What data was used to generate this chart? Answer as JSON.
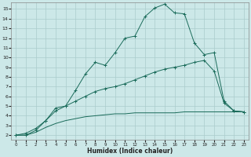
{
  "xlabel": "Humidex (Indice chaleur)",
  "bg_color": "#cce8e8",
  "line_color": "#1a6b5a",
  "grid_color": "#aacccc",
  "xlim": [
    -0.5,
    23.5
  ],
  "ylim": [
    1.5,
    15.7
  ],
  "xticks": [
    0,
    1,
    2,
    3,
    4,
    5,
    6,
    7,
    8,
    9,
    10,
    11,
    12,
    13,
    14,
    15,
    16,
    17,
    18,
    19,
    20,
    21,
    22,
    23
  ],
  "yticks": [
    2,
    3,
    4,
    5,
    6,
    7,
    8,
    9,
    10,
    11,
    12,
    13,
    14,
    15
  ],
  "line1_x": [
    0,
    1,
    2,
    3,
    4,
    5,
    6,
    7,
    8,
    9,
    10,
    11,
    12,
    13,
    14,
    15,
    16,
    17,
    18,
    19,
    20,
    21,
    22,
    23
  ],
  "line1_y": [
    2.0,
    2.2,
    2.7,
    3.5,
    4.5,
    5.0,
    6.6,
    8.3,
    9.5,
    9.2,
    10.5,
    12.0,
    12.2,
    14.2,
    15.1,
    15.5,
    14.6,
    14.5,
    11.5,
    10.3,
    10.5,
    5.5,
    4.5,
    4.4
  ],
  "line2_x": [
    0,
    1,
    2,
    3,
    4,
    5,
    6,
    7,
    8,
    9,
    10,
    11,
    12,
    13,
    14,
    15,
    16,
    17,
    18,
    19,
    20,
    21,
    22,
    23
  ],
  "line2_y": [
    2.0,
    2.0,
    2.5,
    3.5,
    4.8,
    5.0,
    5.5,
    6.0,
    6.5,
    6.8,
    7.0,
    7.3,
    7.7,
    8.1,
    8.5,
    8.8,
    9.0,
    9.2,
    9.5,
    9.7,
    8.6,
    5.3,
    4.5,
    4.4
  ],
  "line3_x": [
    0,
    1,
    2,
    3,
    4,
    5,
    6,
    7,
    8,
    9,
    10,
    11,
    12,
    13,
    14,
    15,
    16,
    17,
    18,
    19,
    20,
    21,
    22,
    23
  ],
  "line3_y": [
    2.0,
    2.0,
    2.3,
    2.8,
    3.2,
    3.5,
    3.7,
    3.9,
    4.0,
    4.1,
    4.2,
    4.2,
    4.3,
    4.3,
    4.3,
    4.3,
    4.3,
    4.4,
    4.4,
    4.4,
    4.4,
    4.4,
    4.4,
    4.4
  ]
}
